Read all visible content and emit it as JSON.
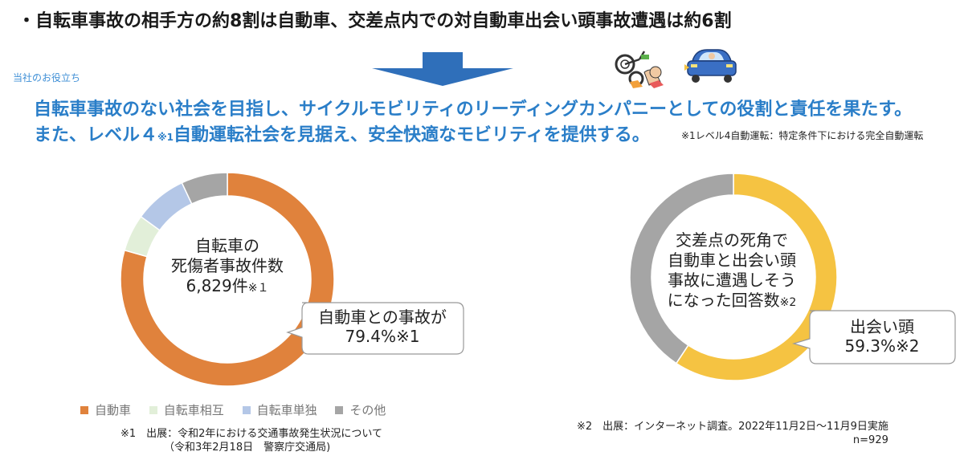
{
  "headline": "・自転車事故の相手方の約8割は自動車、交差点内での対自動車出会い頭事故遭遇は約6割",
  "section_label": "当社のお役立ち",
  "mission": {
    "line1": "自転車事故のない社会を目指し、サイクルモビリティのリーディングカンパニーとしての役割と責任を果たす。",
    "line2_a": "また、レベル４",
    "line2_sup": "※1",
    "line2_b": "自動運転社会を見据え、安全快適なモビリティを提供する。",
    "note": "※1レベル4自動運転：特定条件下における完全自動運転"
  },
  "left_center": {
    "line1": "自転車の",
    "line2": "死傷者事故件数",
    "line3": "6,829件",
    "note": "※１"
  },
  "left_callout": {
    "line1": "自動車との事故が",
    "line2": "79.4%※1"
  },
  "right_center": {
    "line1": "交差点の死角で",
    "line2": "自動車と出会い頭",
    "line3": "事故に遭遇しそう",
    "line4": "になった回答数",
    "note": "※2"
  },
  "right_callout": {
    "line1": "出会い頭",
    "line2": "59.3%※2"
  },
  "legend": [
    "自動車",
    "自転車相互",
    "自転車単独",
    "その他"
  ],
  "source1": {
    "line1": "※1　出展：令和2年における交通事故発生状況について",
    "line2": "（令和3年2月18日　警察庁交通局)"
  },
  "source2": {
    "line1": "※2　出展：インターネット調査。2022年11月2日～11月9日実施",
    "line2": "n=929"
  },
  "chart_data": [
    {
      "type": "pie",
      "style": "donut",
      "categories": [
        "自動車",
        "自転車相互",
        "自転車単独",
        "その他"
      ],
      "values": [
        79.4,
        5.6,
        8.0,
        7.0
      ],
      "colors": [
        "#e0823c",
        "#e2efd9",
        "#b4c7e7",
        "#a5a5a5"
      ]
    },
    {
      "type": "pie",
      "style": "donut",
      "categories": [
        "出会い頭",
        "その他"
      ],
      "values": [
        59.3,
        40.7
      ],
      "colors": [
        "#f5c342",
        "#a5a5a5"
      ]
    }
  ]
}
